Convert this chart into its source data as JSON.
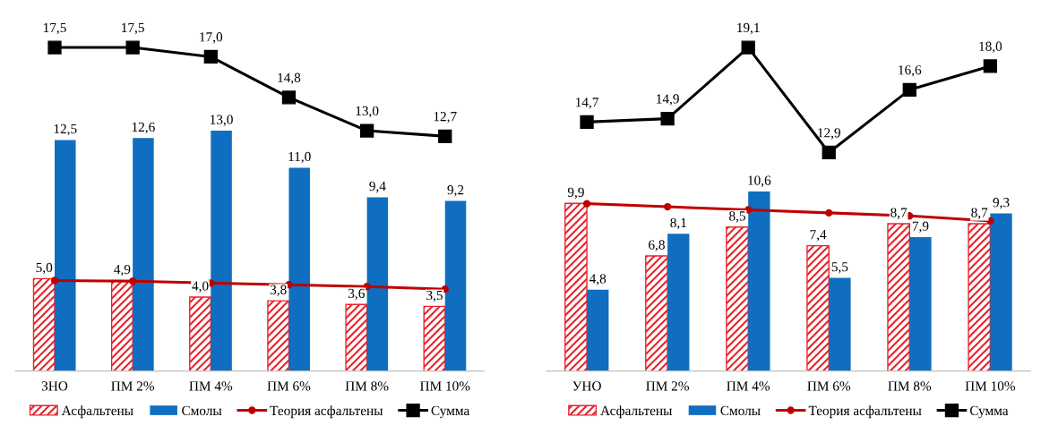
{
  "chart_data": [
    {
      "type": "bar",
      "categories": [
        "ЗНО",
        "ПМ 2%",
        "ПМ 4%",
        "ПМ 6%",
        "ПМ 8%",
        "ПМ 10%"
      ],
      "grid": false,
      "legend": "bottom",
      "series": [
        {
          "name": "Асфальтены",
          "color": "#e8242c",
          "values": [
            5.0,
            4.9,
            4.0,
            3.8,
            3.6,
            3.5
          ],
          "value_labels": [
            "5,0",
            "4,9",
            "4,0",
            "3,8",
            "3,6",
            "3,5"
          ]
        },
        {
          "name": "Смолы",
          "color": "#0f6ec0",
          "values": [
            12.5,
            12.6,
            13.0,
            11.0,
            9.4,
            9.2
          ],
          "value_labels": [
            "12,5",
            "12,6",
            "13,0",
            "11,0",
            "9,4",
            "9,2"
          ]
        },
        {
          "name": "Теория асфальтены",
          "type": "line",
          "color": "#c00000",
          "marker": "circle",
          "values": [
            4.9,
            4.86,
            4.76,
            4.67,
            4.57,
            4.43
          ]
        },
        {
          "name": "Сумма",
          "type": "line",
          "color": "#000000",
          "marker": "square",
          "values": [
            17.5,
            17.5,
            17.0,
            14.8,
            13.0,
            12.7
          ],
          "value_labels": [
            "17,5",
            "17,5",
            "17,0",
            "14,8",
            "13,0",
            "12,7"
          ]
        }
      ]
    },
    {
      "type": "bar",
      "categories": [
        "УНО",
        "ПМ 2%",
        "ПМ 4%",
        "ПМ 6%",
        "ПМ 8%",
        "ПМ 10%"
      ],
      "grid": false,
      "legend": "bottom",
      "series": [
        {
          "name": "Асфальтены",
          "color": "#e8242c",
          "values": [
            9.9,
            6.8,
            8.5,
            7.4,
            8.7,
            8.7
          ],
          "value_labels": [
            "9,9",
            "6,8",
            "8,5",
            "7,4",
            "8,7",
            "8,7"
          ]
        },
        {
          "name": "Смолы",
          "color": "#0f6ec0",
          "values": [
            4.8,
            8.1,
            10.6,
            5.5,
            7.9,
            9.3
          ],
          "value_labels": [
            "4,8",
            "8,1",
            "10,6",
            "5,5",
            "7,9",
            "9,3"
          ]
        },
        {
          "name": "Теория асфальтены",
          "type": "line",
          "color": "#c00000",
          "marker": "circle",
          "values": [
            9.88,
            9.7,
            9.52,
            9.34,
            9.16,
            8.86
          ]
        },
        {
          "name": "Сумма",
          "type": "line",
          "color": "#000000",
          "marker": "square",
          "values": [
            14.7,
            14.9,
            19.1,
            12.9,
            16.6,
            18.0
          ],
          "value_labels": [
            "14,7",
            "14,9",
            "19,1",
            "12,9",
            "16,6",
            "18,0"
          ]
        }
      ]
    }
  ]
}
